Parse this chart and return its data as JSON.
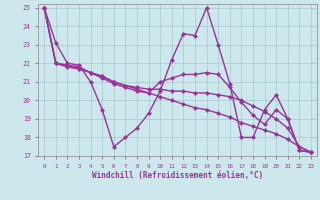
{
  "xlabel": "Windchill (Refroidissement éolien,°C)",
  "xlim": [
    -0.5,
    23.5
  ],
  "ylim": [
    17,
    25.2
  ],
  "yticks": [
    17,
    18,
    19,
    20,
    21,
    22,
    23,
    24,
    25
  ],
  "xticks": [
    0,
    1,
    2,
    3,
    4,
    5,
    6,
    7,
    8,
    9,
    10,
    11,
    12,
    13,
    14,
    15,
    16,
    17,
    18,
    19,
    20,
    21,
    22,
    23
  ],
  "line_color": "#993399",
  "bg_color": "#cce8ec",
  "line_width": 1.0,
  "marker": "D",
  "marker_size": 2.5,
  "series": [
    {
      "x": [
        0,
        1,
        2,
        3,
        4,
        5,
        6,
        7,
        8,
        9,
        10,
        11,
        12,
        13,
        14,
        15,
        16,
        17,
        18,
        19,
        20,
        21,
        22,
        23
      ],
      "y": [
        25.0,
        23.1,
        22.0,
        21.9,
        21.0,
        19.5,
        17.5,
        18.0,
        18.5,
        19.3,
        20.5,
        22.2,
        23.6,
        23.5,
        25.0,
        23.0,
        20.9,
        18.0,
        18.0,
        19.5,
        20.3,
        19.0,
        17.3,
        17.2
      ]
    },
    {
      "x": [
        0,
        1,
        2,
        3,
        4,
        5,
        6,
        7,
        8,
        9,
        10,
        11,
        12,
        13,
        14,
        15,
        16,
        17,
        18,
        19,
        20,
        21,
        22,
        23
      ],
      "y": [
        25.0,
        22.0,
        21.9,
        21.8,
        21.5,
        21.2,
        20.9,
        20.7,
        20.5,
        20.4,
        21.0,
        21.2,
        21.4,
        21.4,
        21.5,
        21.4,
        20.7,
        19.9,
        19.2,
        18.7,
        19.5,
        19.0,
        17.3,
        17.2
      ]
    },
    {
      "x": [
        0,
        1,
        2,
        3,
        4,
        5,
        6,
        7,
        8,
        9,
        10,
        11,
        12,
        13,
        14,
        15,
        16,
        17,
        18,
        19,
        20,
        21,
        22,
        23
      ],
      "y": [
        25.0,
        22.0,
        21.9,
        21.7,
        21.5,
        21.3,
        21.0,
        20.8,
        20.7,
        20.6,
        20.6,
        20.5,
        20.5,
        20.4,
        20.4,
        20.3,
        20.2,
        20.0,
        19.7,
        19.4,
        19.0,
        18.5,
        17.5,
        17.2
      ]
    },
    {
      "x": [
        0,
        1,
        2,
        3,
        4,
        5,
        6,
        7,
        8,
        9,
        10,
        11,
        12,
        13,
        14,
        15,
        16,
        17,
        18,
        19,
        20,
        21,
        22,
        23
      ],
      "y": [
        25.0,
        22.0,
        21.8,
        21.7,
        21.5,
        21.3,
        21.0,
        20.8,
        20.6,
        20.4,
        20.2,
        20.0,
        19.8,
        19.6,
        19.5,
        19.3,
        19.1,
        18.8,
        18.6,
        18.4,
        18.2,
        17.9,
        17.5,
        17.2
      ]
    }
  ]
}
